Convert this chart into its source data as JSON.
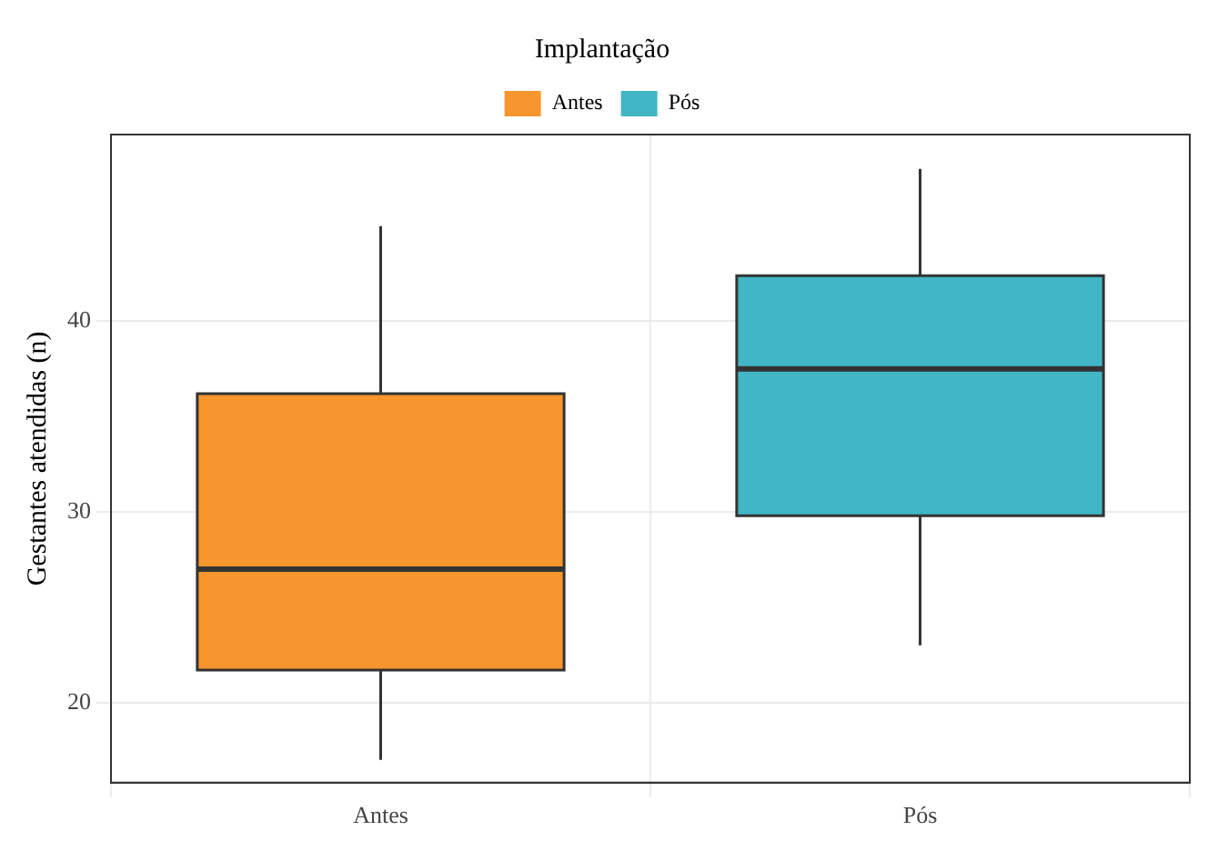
{
  "chart_data": {
    "type": "box",
    "categories": [
      "Antes",
      "Pós"
    ],
    "series": [
      {
        "name": "Antes",
        "color": "#f7962d",
        "boxes": [
          {
            "low": 17,
            "q1": 21.7,
            "median": 27,
            "q3": 36.2,
            "high": 45
          },
          null
        ]
      },
      {
        "name": "Pós",
        "color": "#41b6c4",
        "boxes": [
          null,
          {
            "low": 23,
            "q1": 29.8,
            "median": 37.5,
            "q3": 42.4,
            "high": 48
          }
        ]
      }
    ],
    "ylabel": "Gestantes atendidas (n)",
    "legend_title": "Implantação",
    "legend": "top",
    "ylim": [
      15.8,
      49.8
    ],
    "yticks": [
      20,
      30,
      40
    ],
    "grid": true
  }
}
